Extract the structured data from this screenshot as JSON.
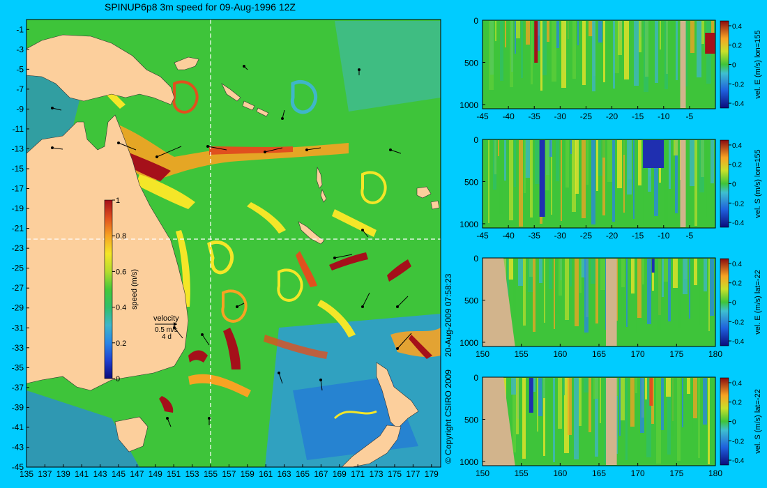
{
  "title": "SPINUP6p8 3m speed for 09-Aug-1996 12Z",
  "copyright": "© Copyright CSIRO 2009",
  "timestamp": "20-Aug-2009 07:58:23",
  "colors": {
    "background": "#00ccff",
    "land": "#fccf9c",
    "section_land": "#d2b48c",
    "section_marker": "#ffffff",
    "colormap": [
      "#0b0b7a",
      "#1f3fcf",
      "#2a86e6",
      "#3fb6c9",
      "#2fbf6a",
      "#45c83a",
      "#b5dc2e",
      "#f4e628",
      "#f7a323",
      "#e0501e",
      "#a5101a"
    ]
  },
  "map": {
    "x_ticks": [
      "135",
      "137",
      "139",
      "141",
      "143",
      "145",
      "147",
      "149",
      "151",
      "153",
      "155",
      "157",
      "159",
      "161",
      "163",
      "165",
      "167",
      "169",
      "171",
      "173",
      "175",
      "177",
      "179"
    ],
    "y_ticks": [
      "-1",
      "-3",
      "-5",
      "-7",
      "-9",
      "-11",
      "-13",
      "-15",
      "-17",
      "-19",
      "-21",
      "-23",
      "-25",
      "-27",
      "-29",
      "-31",
      "-33",
      "-35",
      "-37",
      "-39",
      "-41",
      "-43",
      "-45"
    ],
    "lon_range": [
      135,
      180
    ],
    "lat_range": [
      -45,
      0
    ],
    "section_lon": 155,
    "section_lat": -22
  },
  "colorbar": {
    "label": "speed (m/s)",
    "range": [
      0,
      1
    ],
    "ticks": [
      "1",
      "0.8",
      "0.6",
      "0.4",
      "0.2",
      "0"
    ]
  },
  "velocity_key": {
    "label": "velocity",
    "speed": "0.5 m/s",
    "duration": "4 d"
  },
  "sections": [
    {
      "label": "vel. E (m/s) lon=155",
      "x_ticks": [
        "-45",
        "-40",
        "-35",
        "-30",
        "-25",
        "-20",
        "-15",
        "-10",
        "-5"
      ],
      "x_range": [
        -45,
        0
      ],
      "y_ticks": [
        "0",
        "500",
        "1000"
      ],
      "cbar_ticks": [
        "0.4",
        "0.2",
        "0",
        "-0.2",
        "-0.4"
      ]
    },
    {
      "label": "vel. S (m/s) lon=155",
      "x_ticks": [
        "-45",
        "-40",
        "-35",
        "-30",
        "-25",
        "-20",
        "-15",
        "-10",
        "-5"
      ],
      "x_range": [
        -45,
        0
      ],
      "y_ticks": [
        "0",
        "500",
        "1000"
      ],
      "cbar_ticks": [
        "0.4",
        "0.2",
        "0",
        "-0.2",
        "-0.4"
      ]
    },
    {
      "label": "vel. E (m/s) lat=-22",
      "x_ticks": [
        "150",
        "155",
        "160",
        "165",
        "170",
        "175",
        "180"
      ],
      "x_range": [
        150,
        180
      ],
      "y_ticks": [
        "0",
        "500",
        "1000"
      ],
      "cbar_ticks": [
        "0.4",
        "0.2",
        "0",
        "-0.2",
        "-0.4"
      ]
    },
    {
      "label": "vel. S (m/s) lat=-22",
      "x_ticks": [
        "150",
        "155",
        "160",
        "165",
        "170",
        "175",
        "180"
      ],
      "x_range": [
        150,
        180
      ],
      "y_ticks": [
        "0",
        "500",
        "1000"
      ],
      "cbar_ticks": [
        "0.4",
        "0.2",
        "0",
        "-0.2",
        "-0.4"
      ]
    }
  ]
}
